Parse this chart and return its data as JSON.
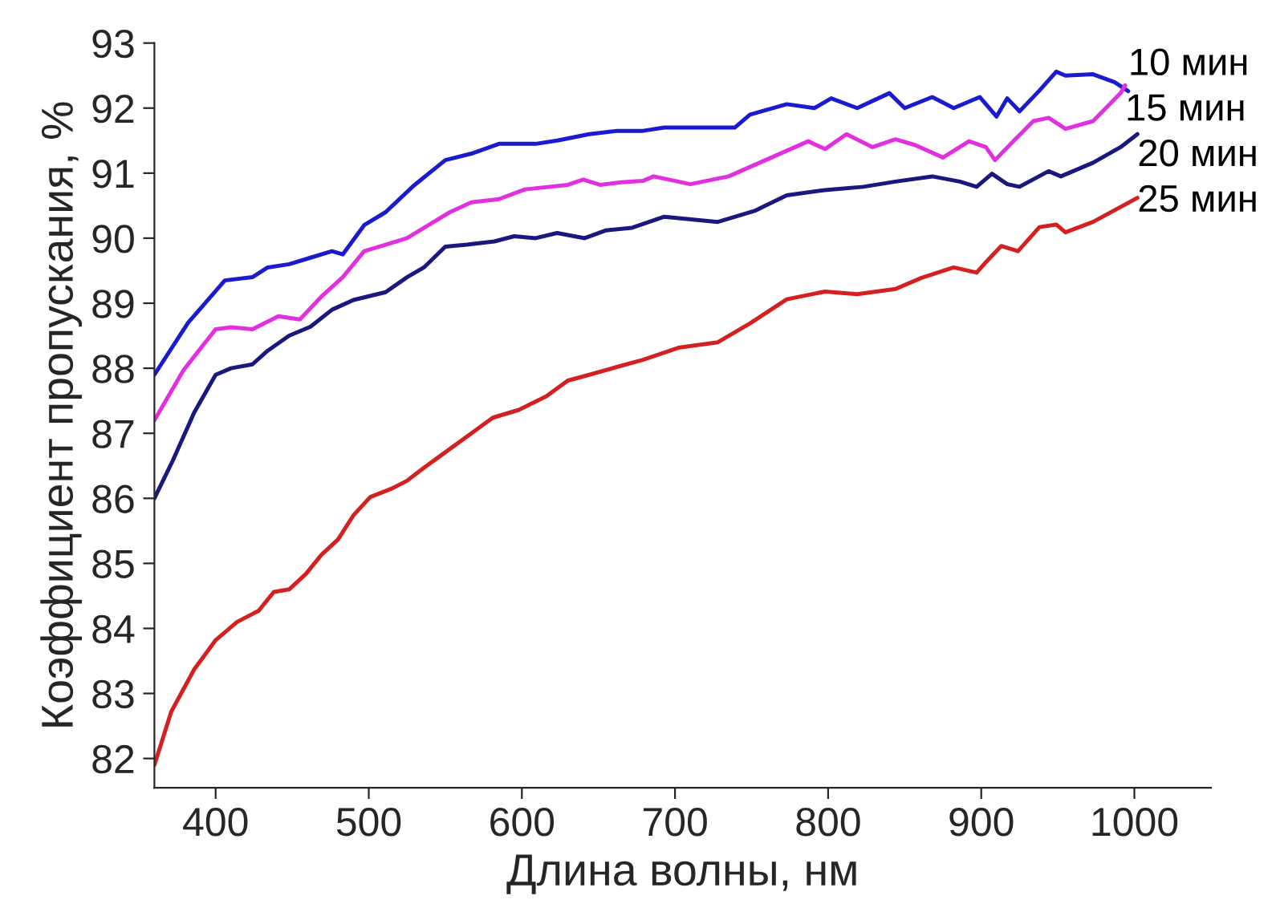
{
  "chart_data": {
    "type": "line",
    "xlabel": "Длина волны, нм",
    "ylabel": "Коэффициент пропускания, %",
    "xlim": [
      360,
      1050
    ],
    "ylim": [
      81.55,
      93
    ],
    "xticks": [
      400,
      500,
      600,
      700,
      800,
      900,
      1000
    ],
    "yticks": [
      82,
      83,
      84,
      85,
      86,
      87,
      88,
      89,
      90,
      91,
      92,
      93
    ],
    "grid": false,
    "legend": false,
    "line_style": "solid",
    "marker": "none",
    "series": [
      {
        "name": "10 мин",
        "color": "#1a1ad0",
        "x": [
          360,
          382,
          406,
          424,
          434,
          448,
          462,
          476,
          483,
          497,
          511,
          529,
          550,
          567,
          585,
          609,
          623,
          644,
          662,
          679,
          693,
          739,
          749,
          773,
          791,
          802,
          819,
          840,
          850,
          868,
          882,
          899,
          910,
          917,
          925,
          938,
          949,
          955,
          973,
          987,
          996
        ],
        "values": [
          87.9,
          88.7,
          89.35,
          89.4,
          89.55,
          89.6,
          89.7,
          89.8,
          89.75,
          90.2,
          90.4,
          90.8,
          91.2,
          91.3,
          91.45,
          91.45,
          91.5,
          91.6,
          91.65,
          91.65,
          91.7,
          91.7,
          91.9,
          92.06,
          92.0,
          92.15,
          92.0,
          92.23,
          92.0,
          92.17,
          92.0,
          92.17,
          91.87,
          92.15,
          91.95,
          92.27,
          92.56,
          92.5,
          92.52,
          92.4,
          92.26
        ]
      },
      {
        "name": "15 мин",
        "color": "#e030e0",
        "x": [
          360,
          379,
          400,
          410,
          424,
          441,
          455,
          469,
          483,
          497,
          511,
          525,
          539,
          553,
          567,
          585,
          602,
          630,
          640,
          651,
          665,
          679,
          686,
          710,
          735,
          763,
          787,
          798,
          812,
          829,
          844,
          857,
          875,
          892,
          903,
          909,
          921,
          934,
          944,
          955,
          973,
          991,
          994
        ],
        "values": [
          87.2,
          87.97,
          88.6,
          88.63,
          88.6,
          88.8,
          88.75,
          89.1,
          89.4,
          89.8,
          89.9,
          90.0,
          90.2,
          90.4,
          90.55,
          90.6,
          90.75,
          90.82,
          90.9,
          90.82,
          90.86,
          90.88,
          90.95,
          90.83,
          90.95,
          91.24,
          91.49,
          91.37,
          91.6,
          91.4,
          91.52,
          91.43,
          91.24,
          91.49,
          91.4,
          91.2,
          91.49,
          91.8,
          91.85,
          91.68,
          91.8,
          92.23,
          92.35
        ]
      },
      {
        "name": "20 мин",
        "color": "#18187e",
        "x": [
          360,
          372,
          386,
          400,
          410,
          424,
          434,
          448,
          462,
          476,
          490,
          511,
          525,
          536,
          550,
          564,
          582,
          595,
          609,
          623,
          641,
          655,
          672,
          693,
          728,
          752,
          773,
          798,
          823,
          844,
          868,
          886,
          897,
          907,
          917,
          925,
          944,
          952,
          973,
          991,
          1002
        ],
        "values": [
          86.0,
          86.58,
          87.32,
          87.9,
          88.0,
          88.06,
          88.27,
          88.5,
          88.64,
          88.9,
          89.05,
          89.17,
          89.4,
          89.55,
          89.87,
          89.9,
          89.95,
          90.03,
          90.0,
          90.08,
          90.0,
          90.12,
          90.16,
          90.33,
          90.25,
          90.42,
          90.66,
          90.74,
          90.79,
          90.87,
          90.95,
          90.87,
          90.79,
          90.99,
          90.83,
          90.79,
          91.03,
          90.95,
          91.16,
          91.4,
          91.6
        ]
      },
      {
        "name": "25 мин",
        "color": "#d42020",
        "x": [
          360,
          371,
          386,
          400,
          414,
          428,
          438,
          448,
          459,
          469,
          480,
          490,
          501,
          515,
          525,
          536,
          546,
          567,
          581,
          598,
          616,
          630,
          644,
          662,
          679,
          703,
          728,
          749,
          773,
          798,
          819,
          844,
          861,
          882,
          897,
          903,
          913,
          924,
          938,
          949,
          955,
          973,
          1002
        ],
        "values": [
          81.9,
          82.72,
          83.37,
          83.82,
          84.1,
          84.27,
          84.56,
          84.6,
          84.84,
          85.13,
          85.37,
          85.74,
          86.02,
          86.15,
          86.27,
          86.47,
          86.64,
          87.0,
          87.24,
          87.36,
          87.57,
          87.81,
          87.9,
          88.02,
          88.13,
          88.32,
          88.4,
          88.69,
          89.06,
          89.18,
          89.14,
          89.22,
          89.39,
          89.55,
          89.47,
          89.63,
          89.88,
          89.8,
          90.17,
          90.21,
          90.09,
          90.25,
          90.62
        ]
      }
    ]
  }
}
